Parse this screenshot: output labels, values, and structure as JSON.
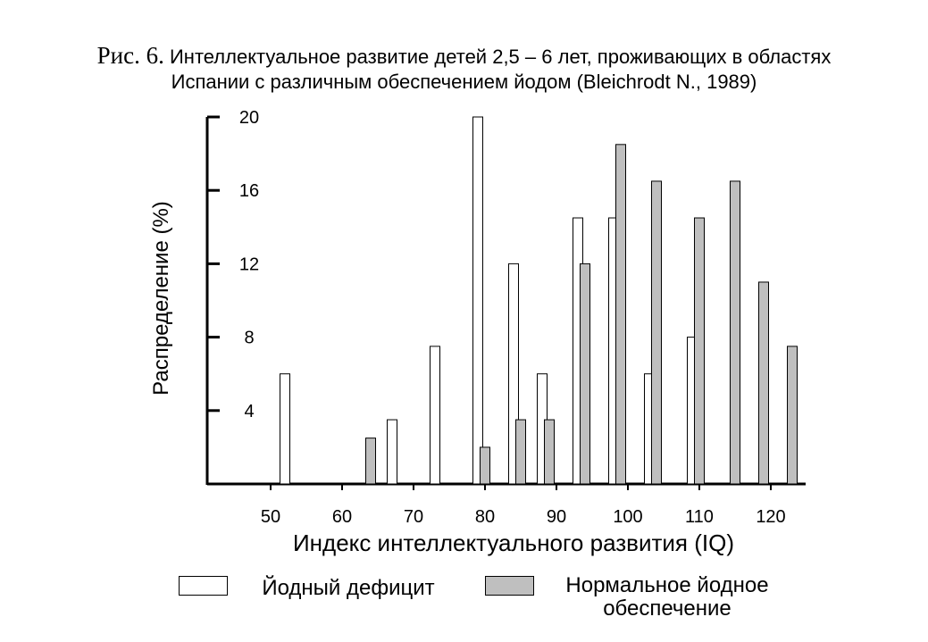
{
  "figure": {
    "label": "Рис. 6.",
    "title_line1": "Интеллектуальное развитие детей 2,5 – 6 лет, проживающих в областях",
    "title_line2": "Испании с различным обеспечением йодом (Bleichrodt N., 1989)"
  },
  "chart_data": {
    "type": "bar",
    "ylabel": "Распределение (%)",
    "xlabel": "Индекс интеллектуального развития (IQ)",
    "ylim": [
      0,
      20
    ],
    "yticks": [
      "4",
      "8",
      "12",
      "16",
      "20"
    ],
    "xticks": [
      "50",
      "60",
      "70",
      "80",
      "90",
      "100",
      "110",
      "120"
    ],
    "grid": false,
    "legend_position": "bottom",
    "series": [
      {
        "name": "Йодный дефицит",
        "color": "#ffffff",
        "points": [
          {
            "x": 52,
            "y": 6.0
          },
          {
            "x": 67,
            "y": 3.5
          },
          {
            "x": 73,
            "y": 7.5
          },
          {
            "x": 79,
            "y": 20.0
          },
          {
            "x": 84,
            "y": 12.0
          },
          {
            "x": 88,
            "y": 6.0
          },
          {
            "x": 93,
            "y": 14.5
          },
          {
            "x": 98,
            "y": 14.5
          },
          {
            "x": 103,
            "y": 6.0
          },
          {
            "x": 109,
            "y": 8.0
          }
        ]
      },
      {
        "name": "Нормальное йодное обеспечение",
        "color": "#bfbfbf",
        "points": [
          {
            "x": 64,
            "y": 2.5
          },
          {
            "x": 80,
            "y": 2.0
          },
          {
            "x": 85,
            "y": 3.5
          },
          {
            "x": 89,
            "y": 3.5
          },
          {
            "x": 94,
            "y": 12.0
          },
          {
            "x": 99,
            "y": 18.5
          },
          {
            "x": 104,
            "y": 16.5
          },
          {
            "x": 110,
            "y": 14.5
          },
          {
            "x": 115,
            "y": 16.5
          },
          {
            "x": 119,
            "y": 11.0
          },
          {
            "x": 123,
            "y": 7.5
          }
        ]
      }
    ]
  },
  "legend": {
    "item1": "Йодный дефицит",
    "item2_line1": "Нормальное йодное",
    "item2_line2": "обеспечение"
  }
}
